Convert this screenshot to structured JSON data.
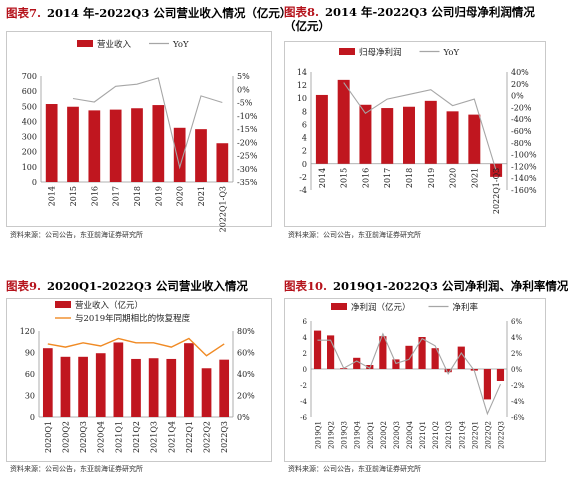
{
  "source_label": "资料来源：公司公告，东亚前海证券研究所",
  "colors": {
    "bar": "#c0161f",
    "line_gray": "#a6a6a6",
    "line_orange": "#f08a24",
    "title_red": "#b5121b"
  },
  "panels": [
    {
      "fig": "图表7.",
      "title": "2014 年-2022Q3 公司营业收入情况（亿元）"
    },
    {
      "fig": "图表8.",
      "title": "2014 年-2022Q3 公司归母净利润情况（亿元）"
    },
    {
      "fig": "图表9.",
      "title": "2020Q1-2022Q3 公司营业收入情况"
    },
    {
      "fig": "图表10.",
      "title": "2019Q1-2022Q3 公司净利润、净利率情况"
    }
  ],
  "chart_data": [
    {
      "type": "bar",
      "categories": [
        "2014",
        "2015",
        "2016",
        "2017",
        "2018",
        "2019",
        "2020",
        "2021",
        "2022Q1-Q3"
      ],
      "series": [
        {
          "name": "营业收入",
          "kind": "bar",
          "axis": "left",
          "values": [
            515,
            497,
            473,
            478,
            487,
            508,
            358,
            349,
            256
          ]
        },
        {
          "name": "YoY",
          "kind": "line",
          "axis": "right",
          "values": [
            null,
            -3.5,
            -4.8,
            1.1,
            1.9,
            4.3,
            -29.5,
            -2.5,
            -5.0
          ]
        }
      ],
      "ylim": [
        0,
        700
      ],
      "yticks": [
        0,
        100,
        200,
        300,
        400,
        500,
        600,
        700
      ],
      "y2lim": [
        -35,
        5
      ],
      "y2ticks": [
        -35,
        -30,
        -25,
        -20,
        -15,
        -10,
        -5,
        0,
        5
      ],
      "y2format": "%",
      "legend_position": "top"
    },
    {
      "type": "bar",
      "categories": [
        "2014",
        "2015",
        "2016",
        "2017",
        "2018",
        "2019",
        "2020",
        "2021",
        "2022Q1-Q3"
      ],
      "series": [
        {
          "name": "归母净利润",
          "kind": "bar",
          "axis": "left",
          "values": [
            10.5,
            12.8,
            9.0,
            8.5,
            8.7,
            9.6,
            8.0,
            7.5,
            -2.0
          ]
        },
        {
          "name": "YoY",
          "kind": "line",
          "axis": "right",
          "values": [
            null,
            22,
            -30,
            -6,
            2,
            10,
            -17,
            -6,
            -127
          ]
        }
      ],
      "ylim": [
        -4,
        14
      ],
      "yticks": [
        -4,
        -2,
        0,
        2,
        4,
        6,
        8,
        10,
        12,
        14
      ],
      "y2lim": [
        -160,
        40
      ],
      "y2ticks": [
        -160,
        -140,
        -120,
        -100,
        -80,
        -60,
        -40,
        -20,
        0,
        20,
        40
      ],
      "y2format": "%",
      "legend_position": "top"
    },
    {
      "type": "bar",
      "categories": [
        "2020Q1",
        "2020Q2",
        "2020Q3",
        "2020Q4",
        "2021Q1",
        "2021Q2",
        "2021Q3",
        "2021Q4",
        "2022Q1",
        "2022Q2",
        "2022Q3"
      ],
      "series": [
        {
          "name": "营业收入（亿元）",
          "kind": "bar",
          "axis": "left",
          "values": [
            96,
            84,
            84,
            89,
            104,
            81,
            82,
            81,
            103,
            68,
            80
          ]
        },
        {
          "name": "与2019年同期相比的恢复程度",
          "kind": "line",
          "axis": "right",
          "color": "orange",
          "values": [
            68,
            65,
            69,
            66,
            73,
            69,
            69,
            65,
            73,
            57,
            68
          ]
        }
      ],
      "ylim": [
        0,
        120
      ],
      "yticks": [
        0,
        30,
        60,
        90,
        120
      ],
      "y2lim": [
        0,
        80
      ],
      "y2ticks": [
        0,
        20,
        40,
        60,
        80
      ],
      "y2format": "%",
      "legend_position": "top-left"
    },
    {
      "type": "bar",
      "categories": [
        "2019Q1",
        "2019Q2",
        "2019Q3",
        "2019Q4",
        "2020Q1",
        "2020Q2",
        "2020Q3",
        "2020Q4",
        "2021Q1",
        "2021Q2",
        "2021Q3",
        "2021Q4",
        "2022Q1",
        "2022Q2",
        "2022Q3"
      ],
      "series": [
        {
          "name": "净利润（亿元）",
          "kind": "bar",
          "axis": "left",
          "values": [
            4.8,
            4.2,
            0.1,
            1.4,
            0.5,
            4.1,
            1.2,
            2.9,
            4.0,
            2.6,
            -0.4,
            2.8,
            -0.2,
            -3.8,
            -1.5
          ]
        },
        {
          "name": "净利率",
          "kind": "line",
          "axis": "right",
          "values": [
            3.6,
            3.6,
            0.1,
            1.0,
            0.1,
            4.4,
            0.7,
            1.2,
            3.8,
            2.9,
            -0.6,
            2.0,
            -0.2,
            -5.6,
            -1.9
          ]
        }
      ],
      "ylim": [
        -6,
        6
      ],
      "yticks": [
        -6,
        -4,
        -2,
        0,
        2,
        4,
        6
      ],
      "y2lim": [
        -6,
        6
      ],
      "y2ticks": [
        -6,
        -4,
        -2,
        0,
        2,
        4,
        6
      ],
      "y2format": "%",
      "legend_position": "top"
    }
  ]
}
